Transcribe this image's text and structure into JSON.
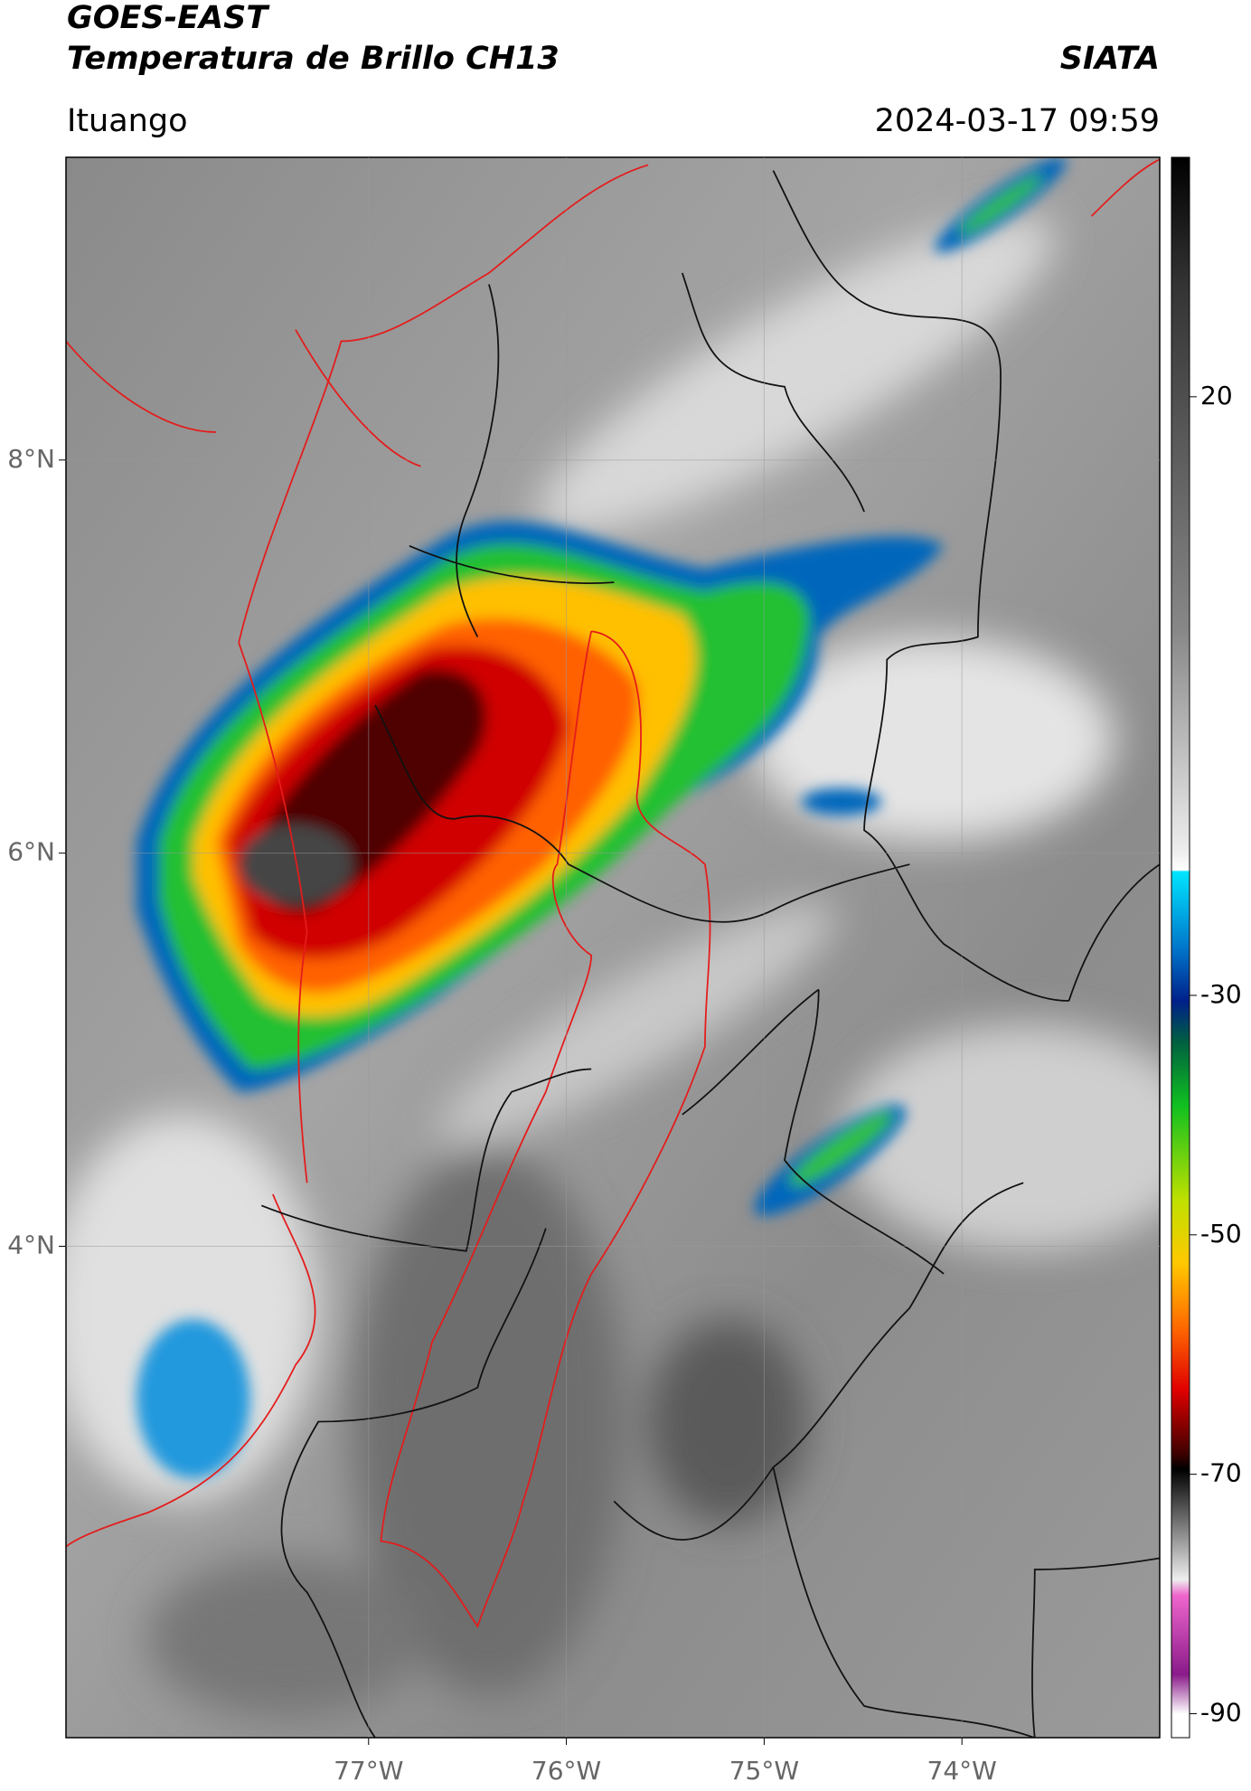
{
  "header": {
    "satellite": "GOES-EAST",
    "product": "Temperatura de Brillo CH13",
    "agency": "SIATA",
    "location": "Ituango",
    "timestamp": "2024-03-17 09:59"
  },
  "map": {
    "xlim": [
      -78.53,
      -73.0
    ],
    "ylim": [
      1.5,
      9.54
    ],
    "xticks": [
      {
        "value": -77,
        "label": "77°W"
      },
      {
        "value": -76,
        "label": "76°W"
      },
      {
        "value": -75,
        "label": "75°W"
      },
      {
        "value": -74,
        "label": "74°W"
      }
    ],
    "yticks": [
      {
        "value": 8,
        "label": "8°N"
      },
      {
        "value": 6,
        "label": "6°N"
      },
      {
        "value": 4,
        "label": "4°N"
      }
    ]
  },
  "colorbar": {
    "lim": [
      -92,
      40
    ],
    "ticks": [
      20,
      -30,
      -50,
      -70,
      -90
    ]
  }
}
